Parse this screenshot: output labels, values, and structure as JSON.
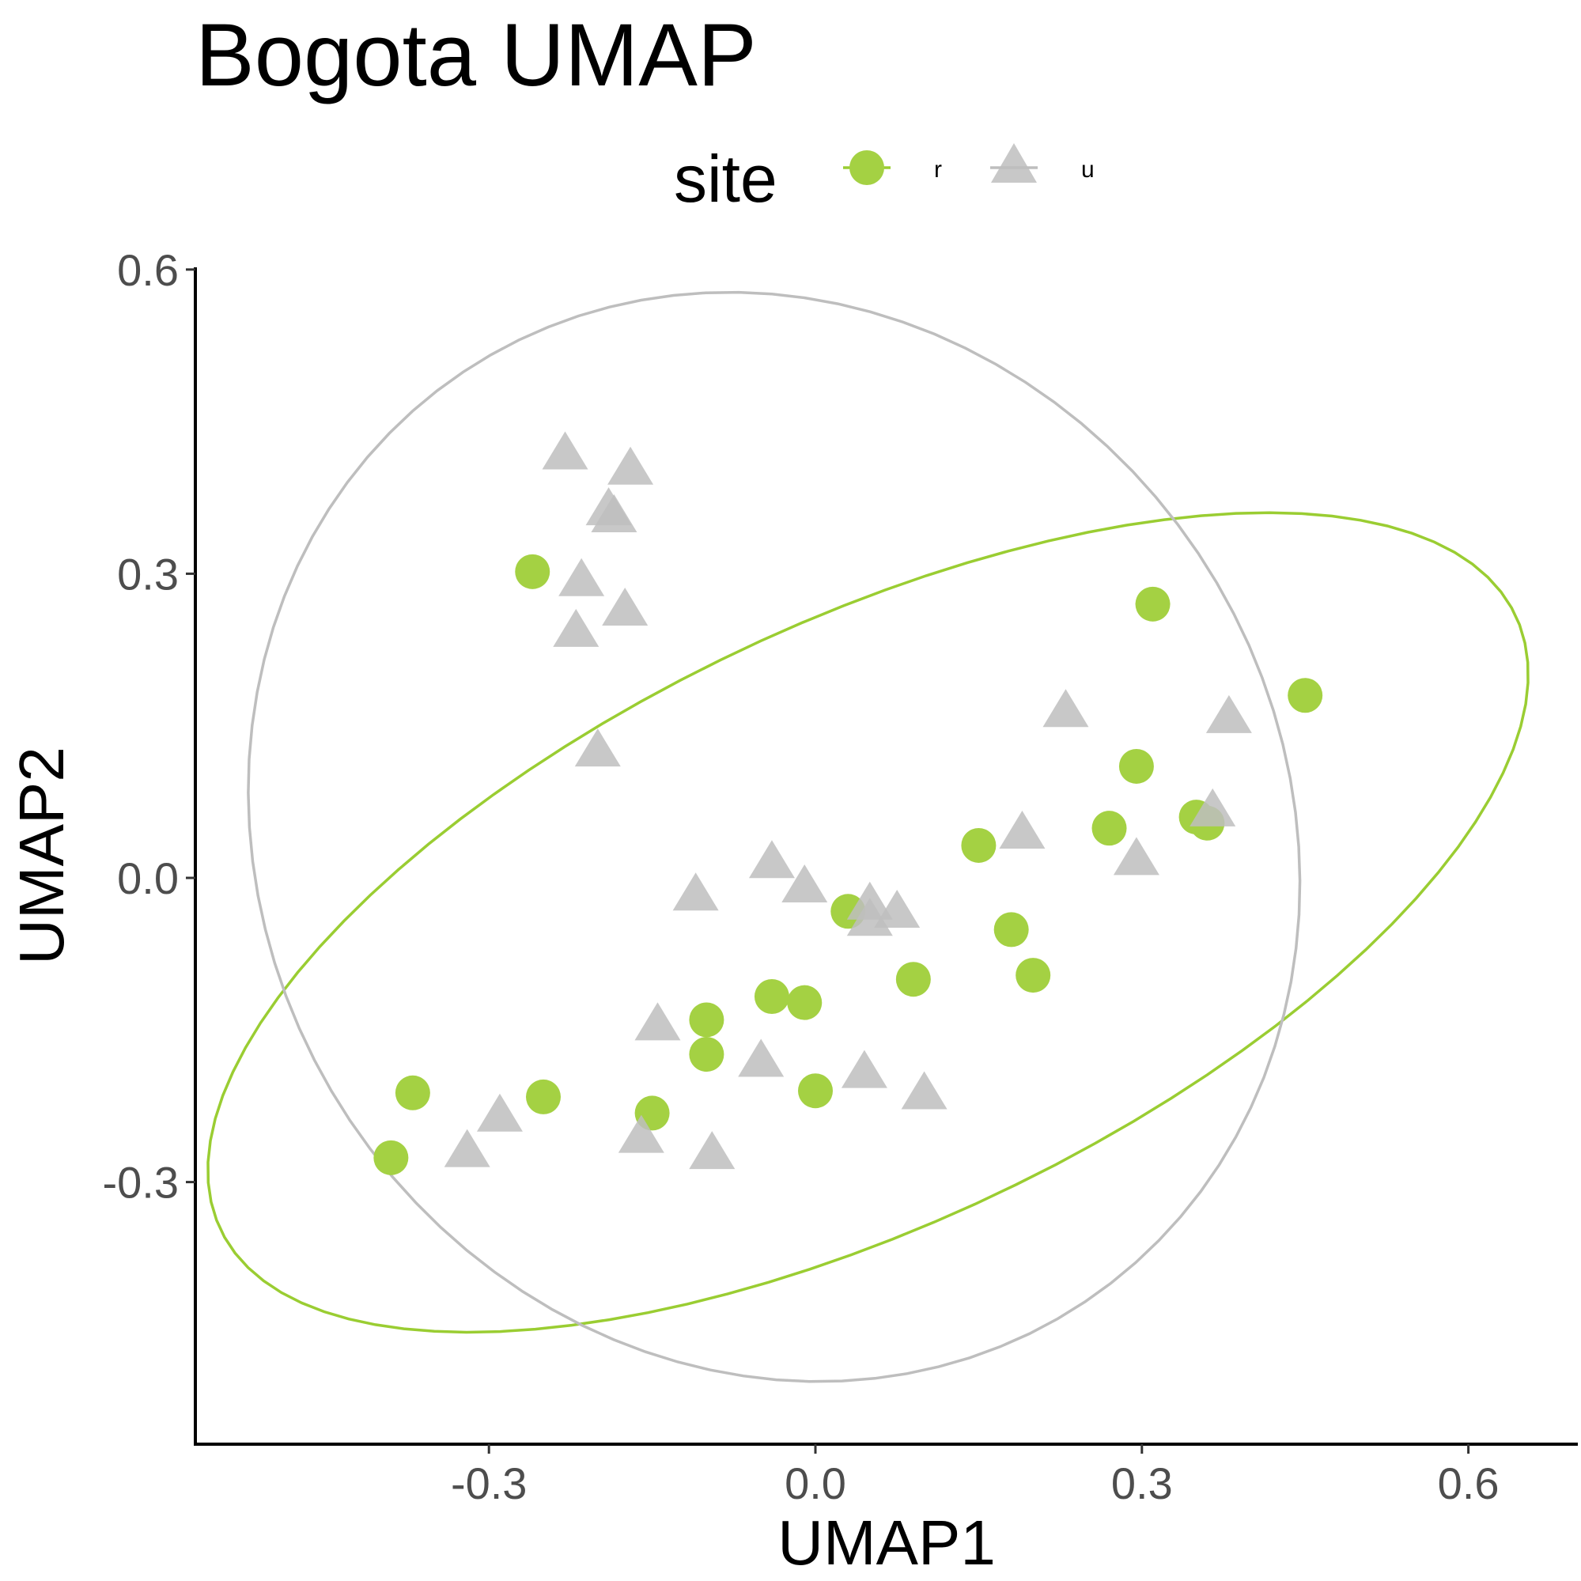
{
  "chart_data": {
    "type": "scatter",
    "title": "Bogota UMAP",
    "xlabel": "UMAP1",
    "ylabel": "UMAP2",
    "xlim": [
      -0.6,
      0.7
    ],
    "ylim": [
      -0.55,
      0.6
    ],
    "x_ticks": [
      -0.3,
      0.0,
      0.3,
      0.6
    ],
    "y_ticks": [
      -0.3,
      0.0,
      0.3,
      0.6
    ],
    "x_tick_labels": [
      "-0.3",
      "0.0",
      "0.3",
      "0.6"
    ],
    "y_tick_labels": [
      "-0.3",
      "0.0",
      "0.3",
      "0.6"
    ],
    "grid": false,
    "ellipses": true,
    "legend": {
      "title": "site",
      "position": "top",
      "entries": [
        {
          "label": "r",
          "shape": "circle",
          "color": "#a4d143"
        },
        {
          "label": "u",
          "shape": "triangle",
          "color": "#bebebe"
        }
      ]
    },
    "series": [
      {
        "name": "r",
        "shape": "circle",
        "color": "#a4d143",
        "ellipse_color": "#9acd32",
        "points": [
          {
            "x": -0.26,
            "y": 0.302
          },
          {
            "x": 0.31,
            "y": 0.27
          },
          {
            "x": 0.45,
            "y": 0.18
          },
          {
            "x": 0.295,
            "y": 0.11
          },
          {
            "x": 0.35,
            "y": 0.06
          },
          {
            "x": 0.36,
            "y": 0.054
          },
          {
            "x": 0.27,
            "y": 0.049
          },
          {
            "x": 0.15,
            "y": 0.032
          },
          {
            "x": 0.03,
            "y": -0.033
          },
          {
            "x": 0.18,
            "y": -0.051
          },
          {
            "x": 0.09,
            "y": -0.1
          },
          {
            "x": 0.2,
            "y": -0.096
          },
          {
            "x": -0.04,
            "y": -0.117
          },
          {
            "x": -0.01,
            "y": -0.123
          },
          {
            "x": -0.1,
            "y": -0.14
          },
          {
            "x": -0.1,
            "y": -0.174
          },
          {
            "x": 0.0,
            "y": -0.21
          },
          {
            "x": -0.15,
            "y": -0.232
          },
          {
            "x": -0.25,
            "y": -0.216
          },
          {
            "x": -0.37,
            "y": -0.212
          },
          {
            "x": -0.39,
            "y": -0.276
          }
        ]
      },
      {
        "name": "u",
        "shape": "triangle",
        "color": "#bebebe",
        "ellipse_color": "#bebebe",
        "points": [
          {
            "x": -0.23,
            "y": 0.42
          },
          {
            "x": -0.17,
            "y": 0.405
          },
          {
            "x": -0.19,
            "y": 0.365
          },
          {
            "x": -0.185,
            "y": 0.358
          },
          {
            "x": -0.215,
            "y": 0.295
          },
          {
            "x": -0.175,
            "y": 0.266
          },
          {
            "x": -0.22,
            "y": 0.245
          },
          {
            "x": -0.2,
            "y": 0.127
          },
          {
            "x": 0.23,
            "y": 0.166
          },
          {
            "x": 0.38,
            "y": 0.16
          },
          {
            "x": 0.365,
            "y": 0.068
          },
          {
            "x": 0.19,
            "y": 0.046
          },
          {
            "x": 0.295,
            "y": 0.02
          },
          {
            "x": -0.04,
            "y": 0.017
          },
          {
            "x": -0.01,
            "y": -0.007
          },
          {
            "x": -0.11,
            "y": -0.015
          },
          {
            "x": 0.05,
            "y": -0.024
          },
          {
            "x": 0.075,
            "y": -0.032
          },
          {
            "x": 0.05,
            "y": -0.04
          },
          {
            "x": -0.145,
            "y": -0.143
          },
          {
            "x": -0.05,
            "y": -0.179
          },
          {
            "x": 0.045,
            "y": -0.19
          },
          {
            "x": 0.1,
            "y": -0.211
          },
          {
            "x": -0.29,
            "y": -0.233
          },
          {
            "x": -0.32,
            "y": -0.268
          },
          {
            "x": -0.16,
            "y": -0.254
          },
          {
            "x": -0.095,
            "y": -0.27
          }
        ]
      }
    ]
  }
}
